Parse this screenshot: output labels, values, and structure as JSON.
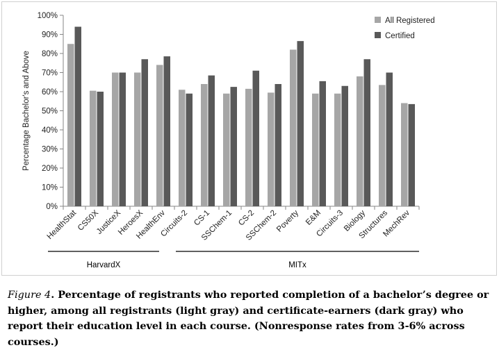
{
  "chart_data": {
    "type": "bar",
    "ylabel": "Percentage Bachelor's and Above",
    "ylim": [
      0,
      100
    ],
    "y_ticks": [
      "0%",
      "10%",
      "20%",
      "30%",
      "40%",
      "50%",
      "60%",
      "70%",
      "80%",
      "90%",
      "100%"
    ],
    "categories": [
      "HealthStat",
      "CS50X",
      "JusticeX",
      "HeroesX",
      "HealthEnv",
      "Circuits-2",
      "CS-1",
      "SSChem-1",
      "CS-2",
      "SSChem-2",
      "Poverty",
      "E&M",
      "Circuits-3",
      "Biology",
      "Structures",
      "MechRev"
    ],
    "series": [
      {
        "name": "All Registered",
        "color": "#a6a6a6",
        "values": [
          85,
          60.5,
          70,
          70,
          74,
          61,
          64,
          59,
          61.5,
          59.5,
          82,
          59,
          59,
          68,
          63.5,
          54
        ]
      },
      {
        "name": "Certified",
        "color": "#595959",
        "values": [
          94,
          60,
          70,
          77,
          78.5,
          59,
          68.5,
          62.5,
          71,
          64,
          86.5,
          65.5,
          63,
          77,
          70,
          53.5
        ]
      }
    ],
    "groups": [
      {
        "label": "HarvardX",
        "from": 0,
        "to": 3
      },
      {
        "label": "MITx",
        "from": 4,
        "to": 15
      }
    ],
    "legend_position": "top-right",
    "grid": false
  },
  "caption": {
    "figure_label": "Figure 4",
    "text": ". Percentage of registrants who reported completion of a bachelor’s degree or higher, among all registrants (light gray) and certificate-earners (dark gray) who report their education level in each course.  (Nonresponse rates from 3-6% across courses.)"
  }
}
